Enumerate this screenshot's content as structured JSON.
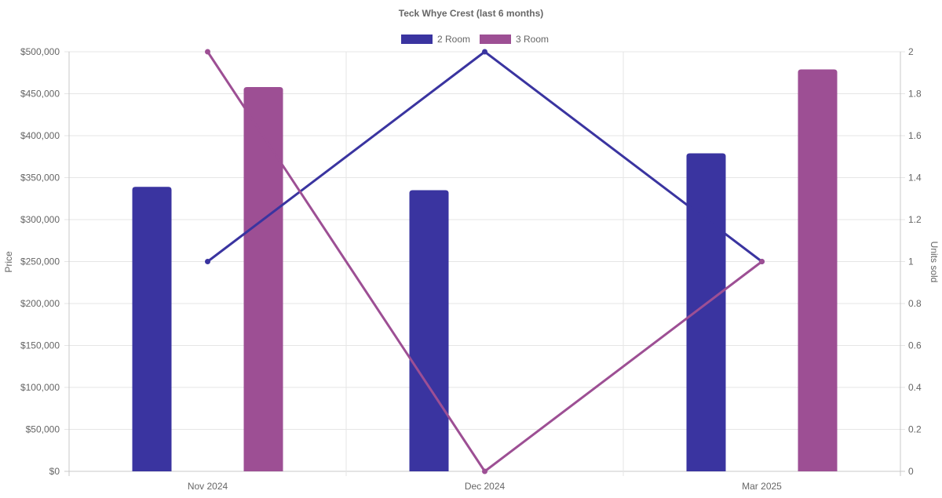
{
  "chart_data": {
    "type": "bar",
    "title": "Teck Whye Crest (last 6 months)",
    "categories": [
      "Nov 2024",
      "Dec 2024",
      "Mar 2025"
    ],
    "y_left": {
      "label": "Price",
      "min": 0,
      "max": 500000,
      "step": 50000,
      "tick_labels": [
        "$0",
        "$50,000",
        "$100,000",
        "$150,000",
        "$200,000",
        "$250,000",
        "$300,000",
        "$350,000",
        "$400,000",
        "$450,000",
        "$500,000"
      ]
    },
    "y_right": {
      "label": "Units sold",
      "min": 0,
      "max": 2,
      "step": 0.2,
      "tick_labels": [
        "0",
        "0.2",
        "0.4",
        "0.6",
        "0.8",
        "1",
        "1.2",
        "1.4",
        "1.6",
        "1.8",
        "2"
      ]
    },
    "series": [
      {
        "name": "2 Room",
        "color": "#3a34a0",
        "price": [
          339000,
          335000,
          379000
        ],
        "units_sold": [
          1,
          2,
          1
        ]
      },
      {
        "name": "3 Room",
        "color": "#9d4f94",
        "price": [
          458000,
          null,
          479000
        ],
        "units_sold": [
          2,
          0,
          1
        ]
      }
    ],
    "grid": true,
    "legend_position": "top-center"
  }
}
